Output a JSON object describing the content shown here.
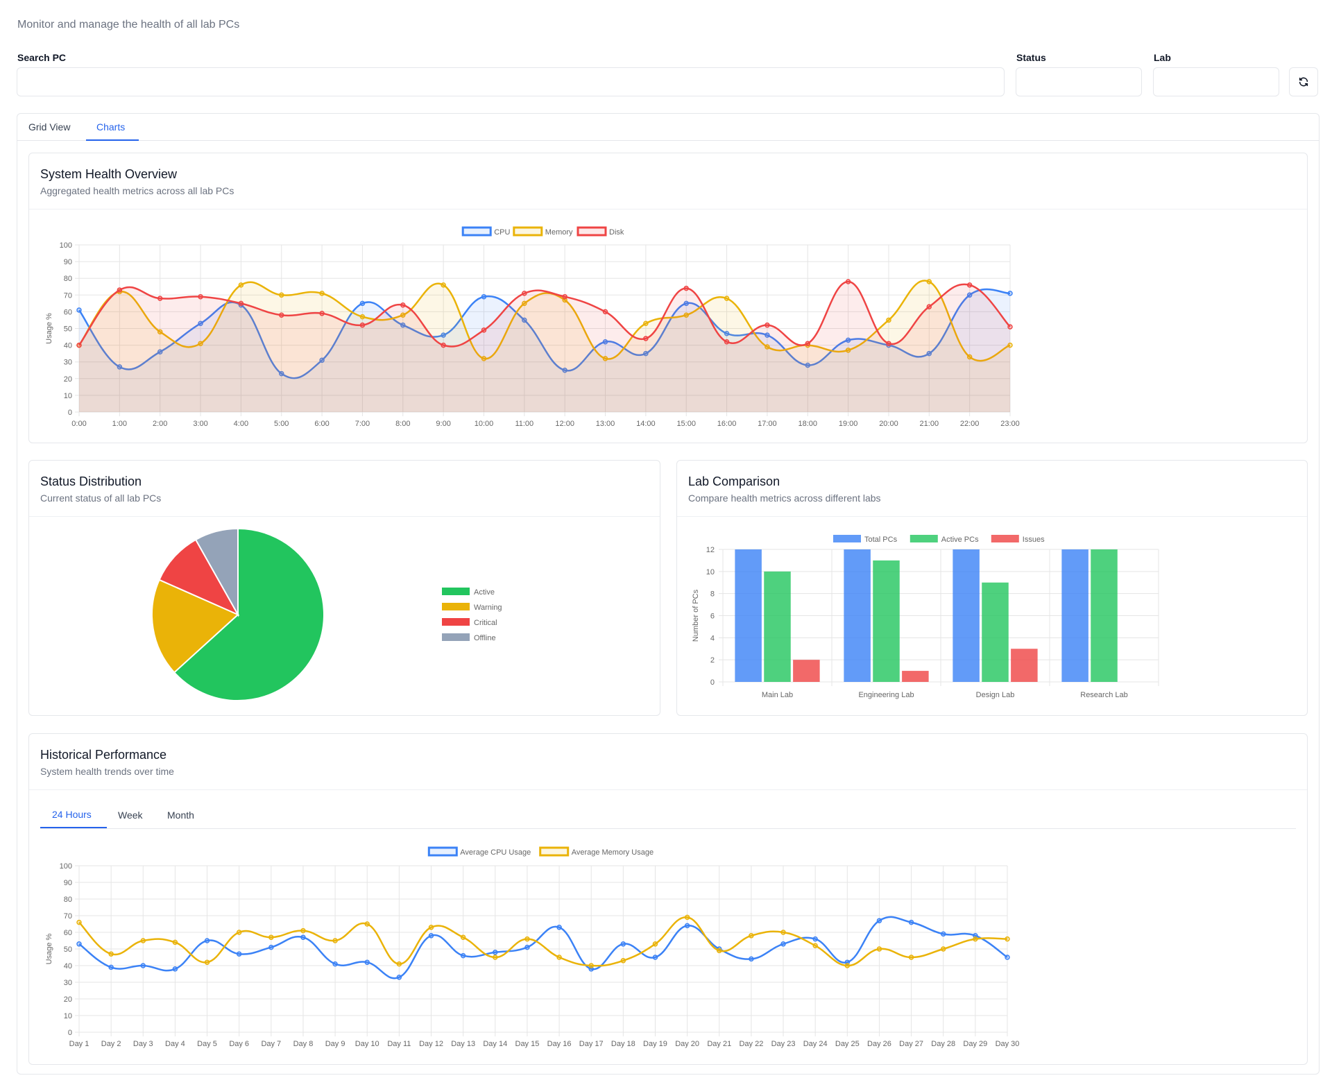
{
  "page": {
    "subtitle": "Monitor and manage the health of all lab PCs"
  },
  "filters": {
    "search_label": "Search PC",
    "search_value": "",
    "status_label": "Status",
    "status_value": "",
    "lab_label": "Lab",
    "lab_value": "",
    "refresh_icon": "refresh-icon"
  },
  "tabs": [
    {
      "label": "Grid View",
      "active": false
    },
    {
      "label": "Charts",
      "active": true
    }
  ],
  "cards": {
    "overview": {
      "title": "System Health Overview",
      "description": "Aggregated health metrics across all lab PCs"
    },
    "status": {
      "title": "Status Distribution",
      "description": "Current status of all lab PCs"
    },
    "lab": {
      "title": "Lab Comparison",
      "description": "Compare health metrics across different labs"
    },
    "historical": {
      "title": "Historical Performance",
      "description": "System health trends over time"
    }
  },
  "history_tabs": [
    {
      "label": "24 Hours",
      "active": true
    },
    {
      "label": "Week",
      "active": false
    },
    {
      "label": "Month",
      "active": false
    }
  ],
  "colors": {
    "accent": "#2563eb",
    "cpu": "#3b82f6",
    "memory": "#eab308",
    "disk": "#ef4444",
    "active": "#22c55e",
    "offline": "#94a3b8"
  },
  "chart_data": [
    {
      "id": "overview",
      "type": "line",
      "title": "System Health Overview",
      "ylabel": "Usage %",
      "ylim": [
        0,
        100
      ],
      "yticks": [
        0,
        10,
        20,
        30,
        40,
        50,
        60,
        70,
        80,
        90,
        100
      ],
      "categories": [
        "0:00",
        "1:00",
        "2:00",
        "3:00",
        "4:00",
        "5:00",
        "6:00",
        "7:00",
        "8:00",
        "9:00",
        "10:00",
        "11:00",
        "12:00",
        "13:00",
        "14:00",
        "15:00",
        "16:00",
        "17:00",
        "18:00",
        "19:00",
        "20:00",
        "21:00",
        "22:00",
        "23:00"
      ],
      "series": [
        {
          "name": "CPU",
          "color": "#3b82f6",
          "values": [
            61,
            27,
            36,
            53,
            64,
            23,
            31,
            65,
            52,
            46,
            69,
            55,
            25,
            42,
            35,
            65,
            47,
            46,
            28,
            43,
            40,
            35,
            70,
            71
          ]
        },
        {
          "name": "Memory",
          "color": "#eab308",
          "values": [
            40,
            72,
            48,
            41,
            76,
            70,
            71,
            57,
            58,
            76,
            32,
            65,
            67,
            32,
            53,
            58,
            68,
            39,
            40,
            37,
            55,
            78,
            33,
            40
          ]
        },
        {
          "name": "Disk",
          "color": "#ef4444",
          "values": [
            40,
            73,
            68,
            69,
            65,
            58,
            59,
            52,
            64,
            40,
            49,
            71,
            69,
            60,
            44,
            74,
            42,
            52,
            41,
            78,
            41,
            63,
            76,
            51
          ]
        }
      ],
      "legend": "top",
      "grid": true,
      "filled": true
    },
    {
      "id": "status",
      "type": "pie",
      "title": "Status Distribution",
      "categories": [
        "Active",
        "Warning",
        "Critical",
        "Offline"
      ],
      "values": [
        31,
        9,
        5,
        4
      ],
      "colors": [
        "#22c55e",
        "#eab308",
        "#ef4444",
        "#94a3b8"
      ],
      "legend": "right"
    },
    {
      "id": "lab",
      "type": "bar",
      "title": "Lab Comparison",
      "ylabel": "Number of PCs",
      "ylim": [
        0,
        12
      ],
      "yticks": [
        0,
        2,
        4,
        6,
        8,
        10,
        12
      ],
      "categories": [
        "Main Lab",
        "Engineering Lab",
        "Design Lab",
        "Research Lab"
      ],
      "series": [
        {
          "name": "Total PCs",
          "color": "#3b82f6",
          "values": [
            12,
            12,
            12,
            12
          ]
        },
        {
          "name": "Active PCs",
          "color": "#22c55e",
          "values": [
            10,
            11,
            9,
            12
          ]
        },
        {
          "name": "Issues",
          "color": "#ef4444",
          "values": [
            2,
            1,
            3,
            0
          ]
        }
      ],
      "legend": "top",
      "grid": true
    },
    {
      "id": "historical",
      "type": "line",
      "title": "Historical Performance",
      "ylabel": "Usage %",
      "ylim": [
        0,
        100
      ],
      "yticks": [
        0,
        10,
        20,
        30,
        40,
        50,
        60,
        70,
        80,
        90,
        100
      ],
      "categories": [
        "Day 1",
        "Day 2",
        "Day 3",
        "Day 4",
        "Day 5",
        "Day 6",
        "Day 7",
        "Day 8",
        "Day 9",
        "Day 10",
        "Day 11",
        "Day 12",
        "Day 13",
        "Day 14",
        "Day 15",
        "Day 16",
        "Day 17",
        "Day 18",
        "Day 19",
        "Day 20",
        "Day 21",
        "Day 22",
        "Day 23",
        "Day 24",
        "Day 25",
        "Day 26",
        "Day 27",
        "Day 28",
        "Day 29",
        "Day 30"
      ],
      "series": [
        {
          "name": "Average CPU Usage",
          "color": "#3b82f6",
          "values": [
            53,
            39,
            40,
            38,
            55,
            47,
            51,
            57,
            41,
            42,
            33,
            58,
            46,
            48,
            51,
            63,
            38,
            53,
            45,
            64,
            50,
            44,
            53,
            56,
            42,
            67,
            66,
            59,
            58,
            45
          ]
        },
        {
          "name": "Average Memory Usage",
          "color": "#eab308",
          "values": [
            66,
            47,
            55,
            54,
            42,
            60,
            57,
            61,
            55,
            65,
            41,
            63,
            57,
            45,
            56,
            45,
            40,
            43,
            53,
            69,
            49,
            58,
            60,
            52,
            40,
            50,
            45,
            50,
            56,
            56
          ]
        }
      ],
      "legend": "top",
      "grid": true,
      "filled": false
    }
  ]
}
